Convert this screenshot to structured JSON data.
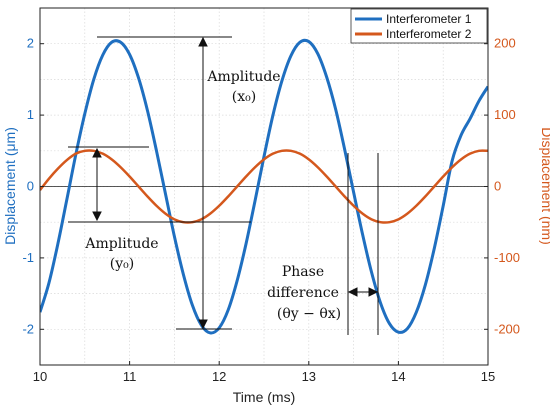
{
  "chart_data": {
    "type": "line",
    "title": "",
    "xlabel": "Time (ms)",
    "ylabel_left": "Displacement (μm)",
    "ylabel_right": "Displacement (nm)",
    "xlim": [
      10,
      15
    ],
    "ylim_left": [
      -2.5,
      2.5
    ],
    "ylim_right": [
      -250,
      250
    ],
    "x_ticks": [
      "10",
      "11",
      "12",
      "13",
      "14",
      "15"
    ],
    "y_ticks_left": [
      "-2",
      "-1",
      "0",
      "1",
      "2"
    ],
    "y_ticks_right": [
      "-200",
      "-100",
      "0",
      "100",
      "200"
    ],
    "grid": true,
    "legend": "top-right",
    "series": [
      {
        "name": "Interferometer 1",
        "axis": "left",
        "color": "#1f6fc0",
        "x": [
          10.0,
          10.1,
          10.2,
          10.3,
          10.4,
          10.5,
          10.6,
          10.7,
          10.8,
          10.9,
          11.0,
          11.1,
          11.2,
          11.3,
          11.4,
          11.5,
          11.6,
          11.7,
          11.8,
          11.9,
          12.0,
          12.1,
          12.2,
          12.3,
          12.4,
          12.5,
          12.6,
          12.7,
          12.8,
          12.9,
          13.0,
          13.1,
          13.2,
          13.3,
          13.4,
          13.5,
          13.6,
          13.7,
          13.8,
          13.9,
          14.0,
          14.1,
          14.2,
          14.3,
          14.4,
          14.5,
          14.6,
          14.7,
          14.8,
          14.9,
          15.0
        ],
        "values": [
          -1.76,
          -1.35,
          -0.8,
          -0.18,
          0.45,
          1.02,
          1.5,
          1.84,
          2.02,
          2.02,
          1.85,
          1.52,
          1.06,
          0.5,
          -0.1,
          -0.7,
          -1.23,
          -1.66,
          -1.94,
          -2.05,
          -1.98,
          -1.73,
          -1.32,
          -0.8,
          -0.2,
          0.42,
          1.0,
          1.48,
          1.83,
          2.02,
          2.03,
          1.86,
          1.53,
          1.08,
          0.52,
          -0.08,
          -0.67,
          -1.2,
          -1.63,
          -1.92,
          -2.04,
          -1.99,
          -1.76,
          -1.38,
          -0.87,
          -0.27,
          0.36,
          0.72,
          0.95,
          1.2,
          1.4
        ]
      },
      {
        "name": "Interferometer 2",
        "axis": "right",
        "color": "#d4581d",
        "x": [
          10.0,
          10.1,
          10.2,
          10.3,
          10.4,
          10.5,
          10.6,
          10.7,
          10.8,
          10.9,
          11.0,
          11.1,
          11.2,
          11.3,
          11.4,
          11.5,
          11.6,
          11.7,
          11.8,
          11.9,
          12.0,
          12.1,
          12.2,
          12.3,
          12.4,
          12.5,
          12.6,
          12.7,
          12.8,
          12.9,
          13.0,
          13.1,
          13.2,
          13.3,
          13.4,
          13.5,
          13.6,
          13.7,
          13.8,
          13.9,
          14.0,
          14.1,
          14.2,
          14.3,
          14.4,
          14.5,
          14.6,
          14.7,
          14.8,
          14.9,
          15.0
        ],
        "values": [
          -5,
          11,
          25,
          37,
          46,
          50,
          50,
          46,
          38,
          27,
          14,
          0,
          -14,
          -27,
          -38,
          -46,
          -50,
          -50,
          -46,
          -38,
          -27,
          -14,
          0,
          14,
          27,
          38,
          46,
          50,
          50,
          46,
          38,
          27,
          14,
          0,
          -14,
          -27,
          -38,
          -46,
          -50,
          -50,
          -46,
          -38,
          -27,
          -14,
          0,
          14,
          27,
          38,
          46,
          50,
          50
        ]
      }
    ],
    "annotations": {
      "amp_x_line1": "Amplitude",
      "amp_x_line2": "(x₀)",
      "amp_y_line1": "Amplitude",
      "amp_y_line2": "(y₀)",
      "phase_line1": "Phase",
      "phase_line2": "difference",
      "phase_line3": "(θy − θx)"
    }
  }
}
